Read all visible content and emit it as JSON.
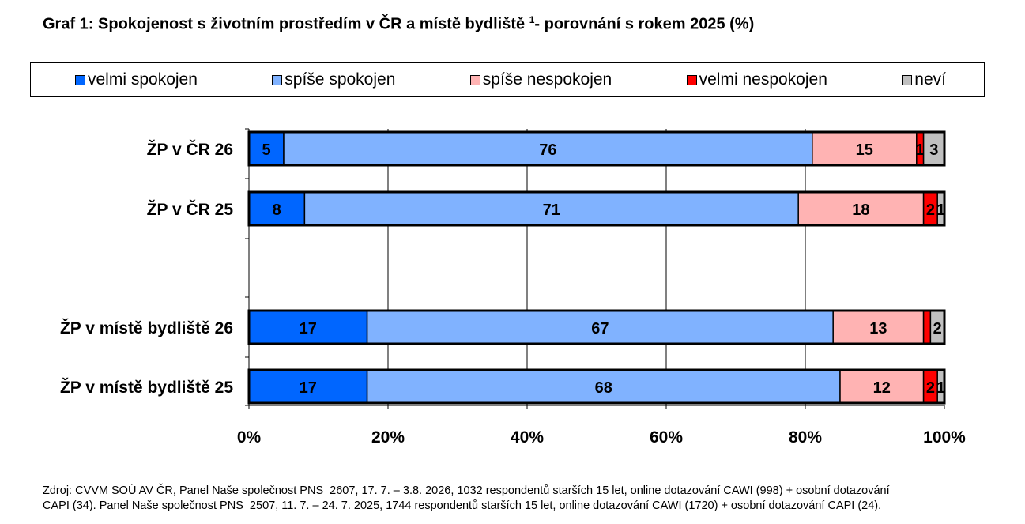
{
  "title": {
    "main": "Graf 1: Spokojenost s životním prostředím v ČR a místě bydliště ",
    "sup": "1",
    "rest": "- porovnání s rokem 2025 (%)"
  },
  "source": {
    "line1": "Zdroj: CVVM SOÚ AV ČR, Panel Naše společnost PNS_2607, 17. 7. – 3.8. 2026, 1032 respondentů starších 15 let, online dotazování CAWI (998) + osobní dotazování",
    "line2": "CAPI (34). Panel Naše společnost PNS_2507, 11. 7. – 24. 7. 2025, 1744 respondentů starších 15 let, online dotazování CAWI (1720) + osobní dotazování CAPI (24)."
  },
  "chart_data": {
    "type": "bar",
    "orientation": "horizontal",
    "stacked": "100%",
    "categories": [
      "ŽP v ČR 26",
      "ŽP v ČR 25",
      "",
      "ŽP v místě bydliště 26",
      "ŽP v místě bydliště 25"
    ],
    "series": [
      {
        "name": "velmi spokojen",
        "color": "#0066ff",
        "values": [
          5,
          8,
          null,
          17,
          17
        ]
      },
      {
        "name": "spíše spokojen",
        "color": "#80b2ff",
        "values": [
          76,
          71,
          null,
          67,
          68
        ]
      },
      {
        "name": "spíše nespokojen",
        "color": "#ffb3b3",
        "values": [
          15,
          18,
          null,
          13,
          12
        ]
      },
      {
        "name": "velmi nespokojen",
        "color": "#ff0000",
        "values": [
          1,
          2,
          null,
          1,
          2
        ]
      },
      {
        "name": "neví",
        "color": "#c0c0c0",
        "values": [
          3,
          1,
          null,
          2,
          1
        ]
      }
    ],
    "labels": [
      [
        "5",
        "76",
        "15",
        "1",
        "3"
      ],
      [
        "8",
        "71",
        "18",
        "2",
        "1"
      ],
      null,
      [
        "17",
        "67",
        "13",
        "",
        "2"
      ],
      [
        "17",
        "68",
        "12",
        "2",
        "1"
      ]
    ],
    "xlim": [
      0,
      100
    ],
    "xticks": [
      "0%",
      "20%",
      "40%",
      "60%",
      "80%",
      "100%"
    ],
    "grid": "vertical",
    "legend_position": "top"
  }
}
